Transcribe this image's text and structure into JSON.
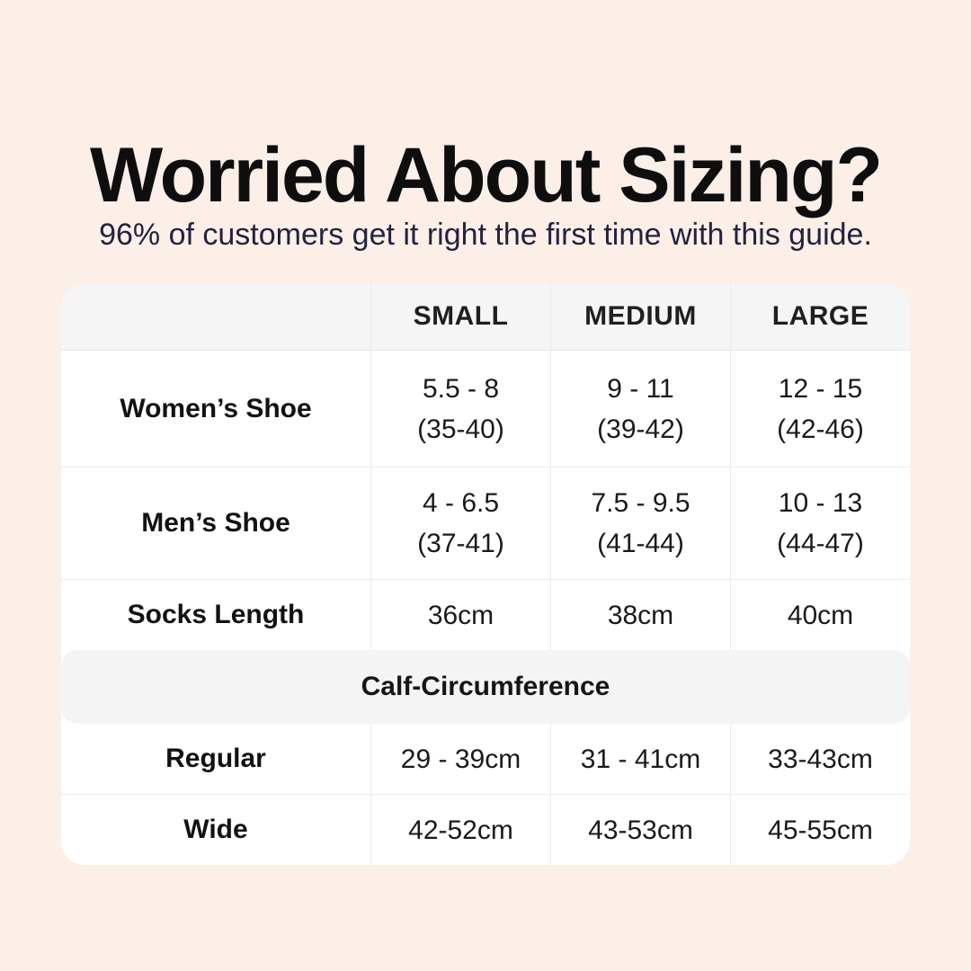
{
  "page": {
    "title": "Worried About Sizing?",
    "subtitle": "96% of customers get it right the first time with this guide."
  },
  "colors": {
    "background": "#fbefe7",
    "card": "#ffffff",
    "header_band": "#f5f5f6",
    "section_band": "#f4f4f5",
    "divider": "#ebebeb",
    "title_text": "#0e0e0e",
    "subtitle_text": "#23233f",
    "table_text": "#1a1a1a"
  },
  "table": {
    "columns": [
      "SMALL",
      "MEDIUM",
      "LARGE"
    ],
    "rows": [
      {
        "label": "Women’s Shoe",
        "cells": [
          [
            "5.5 - 8",
            "(35-40)"
          ],
          [
            "9 - 11",
            "(39-42)"
          ],
          [
            "12 - 15",
            "(42-46)"
          ]
        ]
      },
      {
        "label": "Men’s Shoe",
        "cells": [
          [
            "4 - 6.5",
            "(37-41)"
          ],
          [
            "7.5 - 9.5",
            "(41-44)"
          ],
          [
            "10 - 13",
            "(44-47)"
          ]
        ]
      },
      {
        "label": "Socks Length",
        "cells": [
          [
            "36cm"
          ],
          [
            "38cm"
          ],
          [
            "40cm"
          ]
        ]
      }
    ],
    "section_title": "Calf-Circumference",
    "section_rows": [
      {
        "label": "Regular",
        "cells": [
          [
            "29 - 39cm"
          ],
          [
            "31 - 41cm"
          ],
          [
            "33-43cm"
          ]
        ]
      },
      {
        "label": "Wide",
        "cells": [
          [
            "42-52cm"
          ],
          [
            "43-53cm"
          ],
          [
            "45-55cm"
          ]
        ]
      }
    ]
  },
  "chart_data": {
    "type": "table",
    "title": "Worried About Sizing?",
    "subtitle": "96% of customers get it right the first time with this guide.",
    "columns": [
      "",
      "SMALL",
      "MEDIUM",
      "LARGE"
    ],
    "rows": [
      [
        "Women’s Shoe",
        "5.5 - 8 (35-40)",
        "9 - 11 (39-42)",
        "12 - 15 (42-46)"
      ],
      [
        "Men’s Shoe",
        "4 - 6.5 (37-41)",
        "7.5 - 9.5 (41-44)",
        "10 - 13 (44-47)"
      ],
      [
        "Socks Length",
        "36cm",
        "38cm",
        "40cm"
      ],
      [
        "Calf-Circumference",
        "",
        "",
        ""
      ],
      [
        "Regular",
        "29 - 39cm",
        "31 - 41cm",
        "33-43cm"
      ],
      [
        "Wide",
        "42-52cm",
        "43-53cm",
        "45-55cm"
      ]
    ]
  }
}
